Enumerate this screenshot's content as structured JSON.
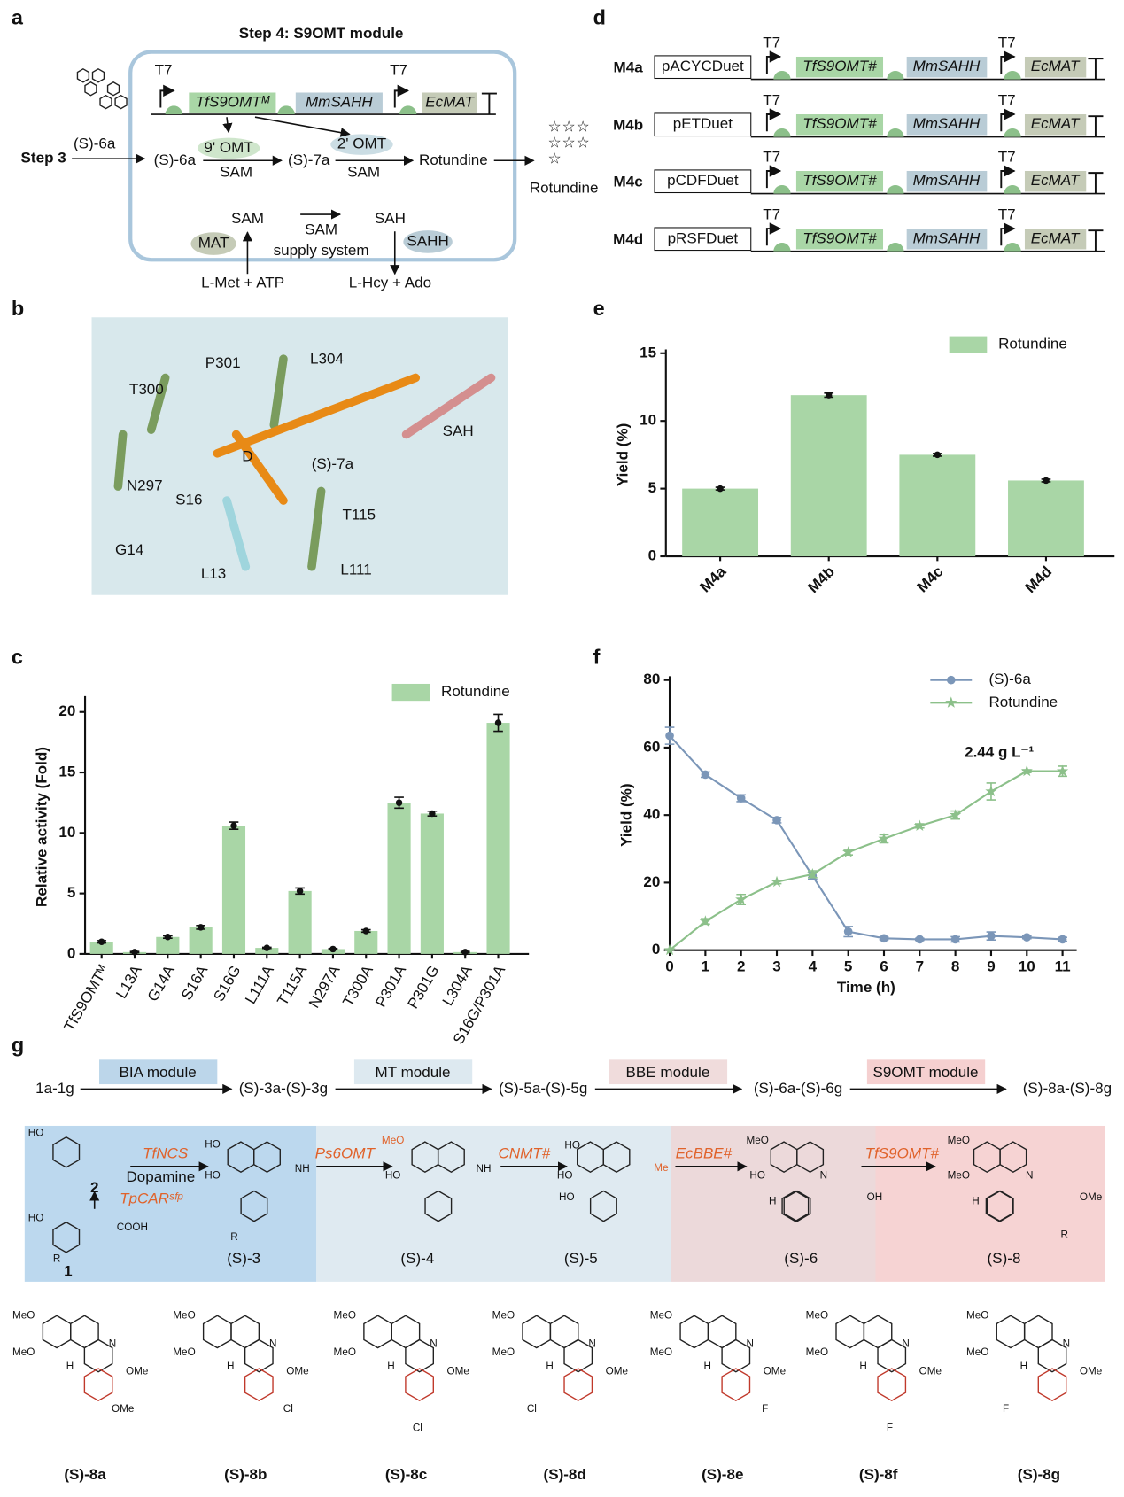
{
  "panel_labels": [
    "a",
    "b",
    "c",
    "d",
    "e",
    "f",
    "g"
  ],
  "panel_a": {
    "title": "Step 4: S9OMT module",
    "step3": "Step 3",
    "substrate": "(S)-6a",
    "intermediate": "(S)-7a",
    "product": "Rotundine",
    "enzymes": [
      "9' OMT",
      "2' OMT"
    ],
    "cofactor": "SAM",
    "promoter": "T7",
    "genes": [
      "TfS9OMTᴹ",
      "MmSAHH",
      "EcMAT"
    ],
    "supply": {
      "sam": "SAM",
      "sah": "SAH",
      "system": "supply system",
      "mat": "MAT",
      "sahh": "SAHH",
      "met": "L-Met + ATP",
      "hcy": "L-Hcy + Ado"
    }
  },
  "panel_b": {
    "labels": [
      "P301",
      "L304",
      "T300",
      "N297",
      "S16",
      "G14",
      "L13",
      "D",
      "(S)-7a",
      "SAH",
      "T115",
      "L111"
    ]
  },
  "panel_d": {
    "promoter": "T7",
    "genes": [
      "TfS9OMT#",
      "MmSAHH",
      "EcMAT"
    ],
    "rows": [
      {
        "name": "M4a",
        "plasmid": "pACYCDuet"
      },
      {
        "name": "M4b",
        "plasmid": "pETDuet"
      },
      {
        "name": "M4c",
        "plasmid": "pCDFDuet"
      },
      {
        "name": "M4d",
        "plasmid": "pRSFDuet"
      }
    ]
  },
  "chart_data": [
    {
      "type": "bar",
      "ylabel": "Relative activity (Fold)",
      "categories": [
        "TfS9OMTᴹ",
        "L13A",
        "G14A",
        "S16A",
        "S16G",
        "L111A",
        "T115A",
        "N297A",
        "T300A",
        "P301A",
        "P301G",
        "L304A",
        "S16G/P301A"
      ],
      "series": [
        {
          "name": "Rotundine",
          "color": "#a9d6a6",
          "values": [
            1.0,
            0.15,
            1.4,
            2.2,
            10.6,
            0.5,
            5.2,
            0.4,
            1.9,
            12.5,
            11.6,
            0.15,
            19.1
          ],
          "errors": [
            0.1,
            0.05,
            0.1,
            0.15,
            0.3,
            0.05,
            0.25,
            0.05,
            0.1,
            0.45,
            0.2,
            0.05,
            0.7
          ]
        }
      ],
      "ylim": [
        0,
        21
      ],
      "yticks": [
        0,
        5,
        10,
        15,
        20
      ],
      "legend": "top-right"
    },
    {
      "type": "bar",
      "ylabel": "Yield (%)",
      "categories": [
        "M4a",
        "M4b",
        "M4c",
        "M4d"
      ],
      "series": [
        {
          "name": "Rotundine",
          "color": "#a9d6a6",
          "values": [
            5.0,
            11.9,
            7.5,
            5.6
          ],
          "errors": [
            0.1,
            0.15,
            0.1,
            0.1
          ]
        }
      ],
      "ylim": [
        0,
        15
      ],
      "yticks": [
        0,
        5,
        10,
        15
      ],
      "legend": "top-right"
    },
    {
      "type": "line",
      "ylabel": "Yield (%)",
      "xlabel": "Time (h)",
      "annotation": "2.44 g L⁻¹",
      "x": [
        0,
        1,
        2,
        3,
        4,
        5,
        6,
        7,
        8,
        9,
        10,
        11
      ],
      "series": [
        {
          "name": "(S)-6a",
          "color": "#7b96b8",
          "marker": "circle",
          "values": [
            63.5,
            52,
            45,
            38.5,
            22,
            5.5,
            3.5,
            3.2,
            3.2,
            4.2,
            3.8,
            3.2
          ],
          "errors": [
            2.5,
            0.8,
            1,
            0.8,
            1,
            1.5,
            0.4,
            0.3,
            0.8,
            1.2,
            0.4,
            0.6
          ]
        },
        {
          "name": "Rotundine",
          "color": "#8cc08a",
          "marker": "star",
          "values": [
            0,
            8.5,
            15,
            20.2,
            22.5,
            29,
            33,
            36.8,
            40,
            47,
            53,
            53
          ],
          "errors": [
            0,
            0.8,
            1.5,
            0.5,
            1,
            0.8,
            1.2,
            0.6,
            1.2,
            2.5,
            0.4,
            1.5
          ]
        }
      ],
      "xlim": [
        0,
        11
      ],
      "xticks": [
        0,
        1,
        2,
        3,
        4,
        5,
        6,
        7,
        8,
        9,
        10,
        11
      ],
      "ylim": [
        0,
        80
      ],
      "yticks": [
        0,
        20,
        40,
        60,
        80
      ],
      "legend": "top-right"
    }
  ],
  "panel_g": {
    "flow": [
      "1a-1g",
      "(S)-3a-(S)-3g",
      "(S)-5a-(S)-5g",
      "(S)-6a-(S)-6g",
      "(S)-8a-(S)-8g"
    ],
    "modules": [
      "BIA module",
      "MT module",
      "BBE module",
      "S9OMT module"
    ],
    "enzymes": [
      "TfNCS",
      "TpCARˢᶠᵖ",
      "Ps6OMT",
      "CNMT#",
      "EcBBE#",
      "TfS9OMT#"
    ],
    "cosubstrate": "Dopamine",
    "compounds": [
      "1",
      "2",
      "(S)-3",
      "(S)-4",
      "(S)-5",
      "(S)-6",
      "(S)-8"
    ],
    "groups": [
      "HO",
      "COOH",
      "R",
      "NH",
      "MeO",
      "Me",
      "OH",
      "H",
      "N",
      "OMe"
    ],
    "products": [
      {
        "name": "(S)-8a",
        "labels": [
          "MeO",
          "MeO",
          "H",
          "N",
          "OMe",
          "OMe"
        ]
      },
      {
        "name": "(S)-8b",
        "labels": [
          "MeO",
          "MeO",
          "H",
          "N",
          "OMe",
          "Cl"
        ]
      },
      {
        "name": "(S)-8c",
        "labels": [
          "MeO",
          "MeO",
          "H",
          "N",
          "OMe",
          "Cl"
        ]
      },
      {
        "name": "(S)-8d",
        "labels": [
          "MeO",
          "MeO",
          "H",
          "N",
          "OMe",
          "Cl"
        ]
      },
      {
        "name": "(S)-8e",
        "labels": [
          "MeO",
          "MeO",
          "H",
          "N",
          "OMe",
          "F"
        ]
      },
      {
        "name": "(S)-8f",
        "labels": [
          "MeO",
          "MeO",
          "H",
          "N",
          "OMe",
          "F"
        ]
      },
      {
        "name": "(S)-8g",
        "labels": [
          "MeO",
          "MeO",
          "H",
          "N",
          "OMe",
          "F"
        ]
      }
    ]
  }
}
